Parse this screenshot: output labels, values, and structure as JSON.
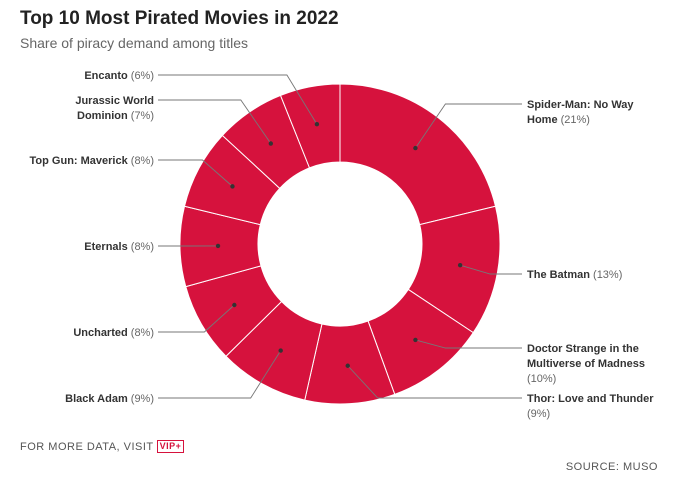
{
  "chart_data": {
    "type": "pie",
    "title": "Top 10 Most Pirated Movies in 2022",
    "subtitle": "Share of piracy demand among titles",
    "slices": [
      {
        "name": "Spider-Man: No Way Home",
        "value": 21
      },
      {
        "name": "The Batman",
        "value": 13
      },
      {
        "name": "Doctor Strange in the Multiverse of Madness",
        "value": 10
      },
      {
        "name": "Thor: Love and Thunder",
        "value": 9
      },
      {
        "name": "Black Adam",
        "value": 9
      },
      {
        "name": "Uncharted",
        "value": 8
      },
      {
        "name": "Eternals",
        "value": 8
      },
      {
        "name": "Top Gun: Maverick",
        "value": 8
      },
      {
        "name": "Jurassic World Dominion",
        "value": 7
      },
      {
        "name": "Encanto",
        "value": 6
      }
    ],
    "color": "#d6123d",
    "labels": [
      {
        "lines": [
          [
            [
              "Spider-Man: No Way",
              "nm"
            ]
          ],
          [
            [
              "Home",
              "nm"
            ],
            [
              " (21%)",
              "pc"
            ]
          ]
        ]
      },
      {
        "lines": [
          [
            [
              "The Batman",
              "nm"
            ],
            [
              " (13%)",
              "pc"
            ]
          ]
        ]
      },
      {
        "lines": [
          [
            [
              "Doctor Strange in the",
              "nm"
            ]
          ],
          [
            [
              "Multiverse of Madness",
              "nm"
            ]
          ],
          [
            [
              "(10%)",
              "pc"
            ]
          ]
        ]
      },
      {
        "lines": [
          [
            [
              "Thor: Love and Thunder",
              "nm"
            ]
          ],
          [
            [
              "(9%)",
              "pc"
            ]
          ]
        ]
      },
      {
        "lines": [
          [
            [
              "Black Adam",
              "nm"
            ],
            [
              " (9%)",
              "pc"
            ]
          ]
        ]
      },
      {
        "lines": [
          [
            [
              "Uncharted",
              "nm"
            ],
            [
              " (8%)",
              "pc"
            ]
          ]
        ]
      },
      {
        "lines": [
          [
            [
              "Eternals",
              "nm"
            ],
            [
              " (8%)",
              "pc"
            ]
          ]
        ]
      },
      {
        "lines": [
          [
            [
              "Top Gun: Maverick",
              "nm"
            ],
            [
              " (8%)",
              "pc"
            ]
          ]
        ]
      },
      {
        "lines": [
          [
            [
              "Jurassic World",
              "nm"
            ]
          ],
          [
            [
              "Dominion",
              "nm"
            ],
            [
              " (7%)",
              "pc"
            ]
          ]
        ]
      },
      {
        "lines": [
          [
            [
              "Encanto",
              "nm"
            ],
            [
              " (6%)",
              "pc"
            ]
          ]
        ]
      }
    ]
  },
  "footer": {
    "more_data": "FOR MORE DATA, VISIT",
    "vip": "VIP+",
    "source": "SOURCE: MUSO"
  }
}
